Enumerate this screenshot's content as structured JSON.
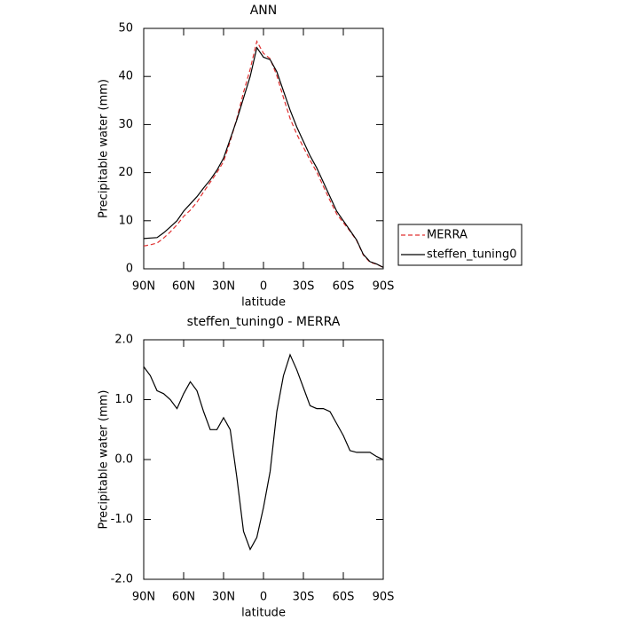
{
  "chart_data": [
    {
      "type": "line",
      "title": "ANN",
      "xlabel": "latitude",
      "ylabel": "Precipitable water (mm)",
      "x": [
        90,
        85,
        80,
        75,
        70,
        65,
        60,
        55,
        50,
        45,
        40,
        35,
        30,
        25,
        20,
        15,
        10,
        5,
        0,
        -5,
        -10,
        -15,
        -20,
        -25,
        -30,
        -35,
        -40,
        -45,
        -50,
        -55,
        -60,
        -65,
        -70,
        -75,
        -80,
        -85,
        -90
      ],
      "series": [
        {
          "name": "MERRA",
          "color": "#e03030",
          "dash": true,
          "values": [
            4.75,
            5.0,
            5.35,
            6.4,
            7.7,
            9.15,
            10.9,
            12.2,
            13.85,
            16.0,
            18.0,
            20.0,
            22.3,
            26.5,
            31.3,
            36.7,
            41.5,
            47.3,
            44.8,
            43.7,
            40.2,
            35.6,
            31.25,
            28.0,
            25.3,
            22.6,
            20.15,
            17.15,
            14.2,
            11.4,
            9.6,
            7.85,
            5.88,
            2.88,
            1.38,
            0.95,
            0.3
          ]
        },
        {
          "name": "steffen_tuning0",
          "color": "#000000",
          "dash": false,
          "values": [
            6.3,
            6.4,
            6.5,
            7.5,
            8.7,
            10,
            12,
            13.5,
            15,
            16.8,
            18.5,
            20.5,
            23,
            27,
            31,
            35.5,
            40,
            46,
            44,
            43.5,
            41,
            37,
            33,
            29.5,
            26.5,
            23.5,
            21,
            18,
            15,
            12,
            10,
            8,
            6,
            3,
            1.5,
            1,
            0.3
          ]
        }
      ],
      "xlim": [
        90,
        -90
      ],
      "xticks": [
        {
          "value": 90,
          "label": "90N"
        },
        {
          "value": 60,
          "label": "60N"
        },
        {
          "value": 30,
          "label": "30N"
        },
        0,
        {
          "value": -30,
          "label": "30S"
        },
        {
          "value": -60,
          "label": "60S"
        },
        {
          "value": -90,
          "label": "90S"
        }
      ],
      "ylim": [
        0,
        50
      ],
      "yticks": [
        0,
        10,
        20,
        30,
        40,
        50
      ],
      "legend": "right"
    },
    {
      "type": "line",
      "title": "steffen_tuning0 - MERRA",
      "xlabel": "latitude",
      "ylabel": "Precipitable water (mm)",
      "x": [
        90,
        85,
        80,
        75,
        70,
        65,
        60,
        55,
        50,
        45,
        40,
        35,
        30,
        25,
        20,
        15,
        10,
        5,
        0,
        -5,
        -10,
        -15,
        -20,
        -25,
        -30,
        -35,
        -40,
        -45,
        -50,
        -55,
        -60,
        -65,
        -70,
        -75,
        -80,
        -85,
        -90
      ],
      "series": [
        {
          "color": "#000000",
          "values": [
            1.55,
            1.4,
            1.15,
            1.1,
            1.0,
            0.85,
            1.1,
            1.3,
            1.15,
            0.8,
            0.5,
            0.5,
            0.7,
            0.5,
            -0.3,
            -1.2,
            -1.5,
            -1.3,
            -0.8,
            -0.2,
            0.8,
            1.4,
            1.75,
            1.5,
            1.2,
            0.9,
            0.85,
            0.85,
            0.8,
            0.6,
            0.4,
            0.15,
            0.12,
            0.12,
            0.12,
            0.05,
            0.0
          ]
        }
      ],
      "xlim": [
        90,
        -90
      ],
      "xticks": [
        {
          "value": 90,
          "label": "90N"
        },
        {
          "value": 60,
          "label": "60N"
        },
        {
          "value": 30,
          "label": "30N"
        },
        0,
        {
          "value": -30,
          "label": "30S"
        },
        {
          "value": -60,
          "label": "60S"
        },
        {
          "value": -90,
          "label": "90S"
        }
      ],
      "ylim": [
        -2,
        2
      ],
      "yticks": [
        {
          "value": -2,
          "label": "-2.0"
        },
        {
          "value": -1,
          "label": "-1.0"
        },
        {
          "value": 0,
          "label": "0.0"
        },
        {
          "value": 1,
          "label": "1.0"
        },
        {
          "value": 2,
          "label": "2.0"
        }
      ]
    }
  ]
}
